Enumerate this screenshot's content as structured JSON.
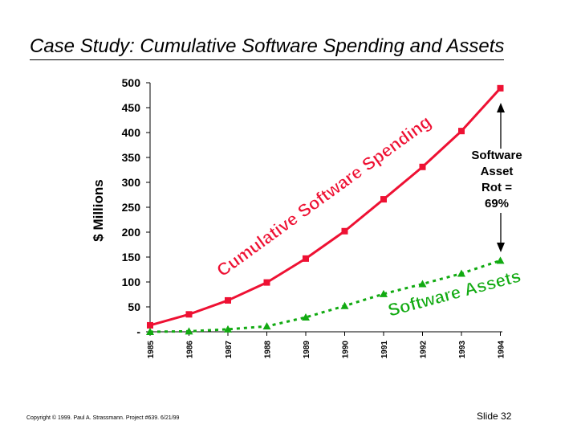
{
  "slide": {
    "title": "Case Study: Cumulative Software Spending and Assets",
    "footer": "Copyright © 1999.  Paul A. Strassmann. Project #639.      6/21/99",
    "slide_number": "Slide 32"
  },
  "colors": {
    "spending": "#ee1133",
    "assets": "#11aa11"
  },
  "chart_data": {
    "type": "line",
    "x": [
      "1985",
      "1986",
      "1987",
      "1988",
      "1989",
      "1990",
      "1991",
      "1992",
      "1993",
      "1994"
    ],
    "ylabel": "$ Millions",
    "ylim": [
      0,
      500
    ],
    "yticks": [
      0,
      50,
      100,
      150,
      200,
      250,
      300,
      350,
      400,
      450,
      500
    ],
    "ytick_labels": [
      "-",
      "50",
      "100",
      "150",
      "200",
      "250",
      "300",
      "350",
      "400",
      "450",
      "500"
    ],
    "series": [
      {
        "name": "Cumulative Software Spending",
        "values": [
          13,
          35,
          63,
          99,
          147,
          202,
          266,
          331,
          403,
          489
        ]
      },
      {
        "name": "Software Assets",
        "values": [
          0,
          1,
          5,
          11,
          29,
          52,
          76,
          96,
          117,
          143
        ]
      }
    ],
    "annotation": {
      "lines": [
        "Software",
        "Asset",
        "Rot =",
        "69%"
      ]
    }
  }
}
